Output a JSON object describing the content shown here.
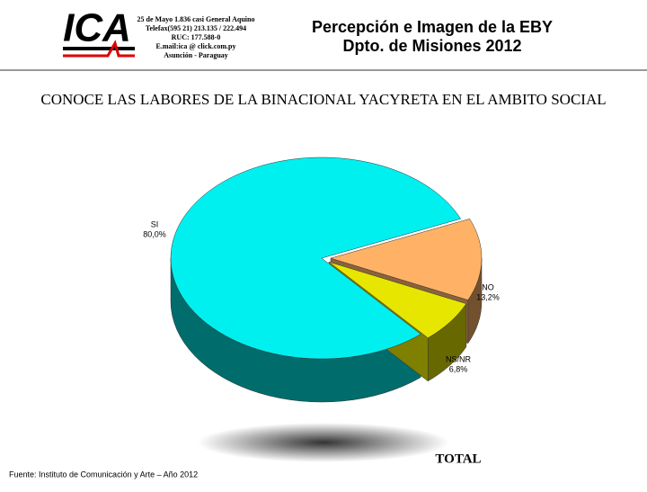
{
  "header": {
    "logo": "ICA",
    "address": [
      "25 de Mayo 1.836 casi General Aquino",
      "Telefax(595 21) 213.135 / 222.494",
      "RUC: 177.588-0",
      "E.mail:ica @ click.com.py",
      "Asunción - Paraguay"
    ],
    "title": [
      "Percepción e Imagen de la EBY",
      "Dpto. de Misiones 2012"
    ]
  },
  "footer": "Fuente: Instituto de Comunicación y Arte – Año 2012",
  "chart_data": {
    "type": "pie",
    "title": "CONOCE LAS LABORES DE LA BINACIONAL YACYRETA EN EL AMBITO SOCIAL",
    "categories": [
      "SI",
      "NO",
      "NS/NR"
    ],
    "values": [
      80.0,
      13.2,
      6.8
    ],
    "value_labels": [
      "80,0%",
      "13,2%",
      "6,8%"
    ],
    "colors": [
      "#00f0f0",
      "#ffb266",
      "#e6e600"
    ],
    "caption": "TOTAL"
  }
}
